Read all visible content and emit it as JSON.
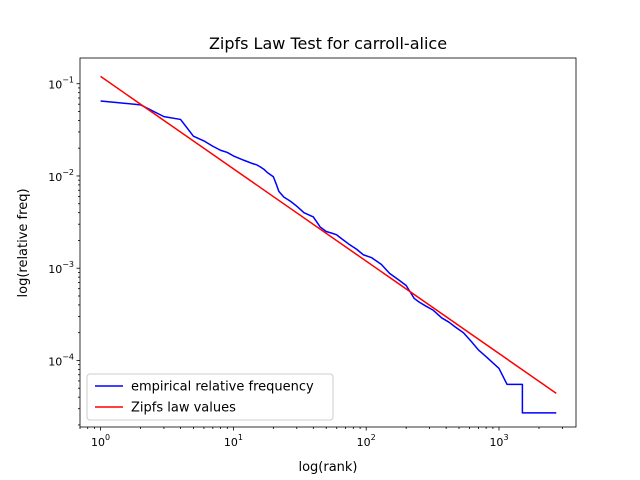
{
  "chart_data": {
    "type": "line",
    "title": "Zipfs Law Test for carroll-alice",
    "xlabel": "log(rank)",
    "ylabel": "log(relative freq)",
    "xscale": "log",
    "yscale": "log",
    "xlim": [
      0.7,
      3800
    ],
    "ylim": [
      1.9e-05,
      0.19
    ],
    "x_ticks": [
      {
        "value": 1,
        "base": "10",
        "exp": "0"
      },
      {
        "value": 10,
        "base": "10",
        "exp": "1"
      },
      {
        "value": 100,
        "base": "10",
        "exp": "2"
      },
      {
        "value": 1000,
        "base": "10",
        "exp": "3"
      }
    ],
    "y_ticks": [
      {
        "value": 0.0001,
        "base": "10",
        "exp": "−4"
      },
      {
        "value": 0.001,
        "base": "10",
        "exp": "−3"
      },
      {
        "value": 0.01,
        "base": "10",
        "exp": "−2"
      },
      {
        "value": 0.1,
        "base": "10",
        "exp": "−1"
      }
    ],
    "grid": false,
    "legend_position": "lower-left",
    "series": [
      {
        "name": "empirical relative frequency",
        "color": "#0000ff",
        "step": false,
        "points": [
          [
            1,
            0.065
          ],
          [
            2,
            0.059
          ],
          [
            3,
            0.044
          ],
          [
            4,
            0.041
          ],
          [
            5,
            0.027
          ],
          [
            6,
            0.024
          ],
          [
            7,
            0.021
          ],
          [
            8,
            0.019
          ],
          [
            9,
            0.018
          ],
          [
            10,
            0.0165
          ],
          [
            12,
            0.0148
          ],
          [
            14,
            0.0136
          ],
          [
            15,
            0.0132
          ],
          [
            16,
            0.0125
          ],
          [
            17,
            0.0118
          ],
          [
            18,
            0.0109
          ],
          [
            20,
            0.0098
          ],
          [
            21,
            0.0082
          ],
          [
            22,
            0.0068
          ],
          [
            24,
            0.0059
          ],
          [
            27,
            0.0053
          ],
          [
            30,
            0.0047
          ],
          [
            34,
            0.004
          ],
          [
            40,
            0.0036
          ],
          [
            45,
            0.0028
          ],
          [
            50,
            0.0025
          ],
          [
            55,
            0.0024
          ],
          [
            60,
            0.0023
          ],
          [
            65,
            0.0021
          ],
          [
            75,
            0.0018
          ],
          [
            85,
            0.0016
          ],
          [
            95,
            0.0014
          ],
          [
            110,
            0.0013
          ],
          [
            130,
            0.0011
          ],
          [
            150,
            0.00088
          ],
          [
            175,
            0.00075
          ],
          [
            200,
            0.00065
          ],
          [
            210,
            0.00058
          ],
          [
            230,
            0.00047
          ],
          [
            250,
            0.00043
          ],
          [
            280,
            0.00039
          ],
          [
            320,
            0.00035
          ],
          [
            370,
            0.00029
          ],
          [
            420,
            0.00026
          ],
          [
            470,
            0.00023
          ],
          [
            540,
            0.0002
          ],
          [
            620,
            0.00016
          ],
          [
            700,
            0.00013
          ],
          [
            800,
            0.00011
          ],
          [
            1000,
            8.2e-05
          ],
          [
            1150,
            5.5e-05
          ],
          [
            1500,
            5.5e-05
          ],
          [
            1500,
            2.7e-05
          ],
          [
            2700,
            2.7e-05
          ]
        ]
      },
      {
        "name": "Zipfs law values",
        "color": "#ff0000",
        "step": false,
        "points": [
          [
            1,
            0.12
          ],
          [
            2700,
            4.4e-05
          ]
        ]
      }
    ]
  }
}
